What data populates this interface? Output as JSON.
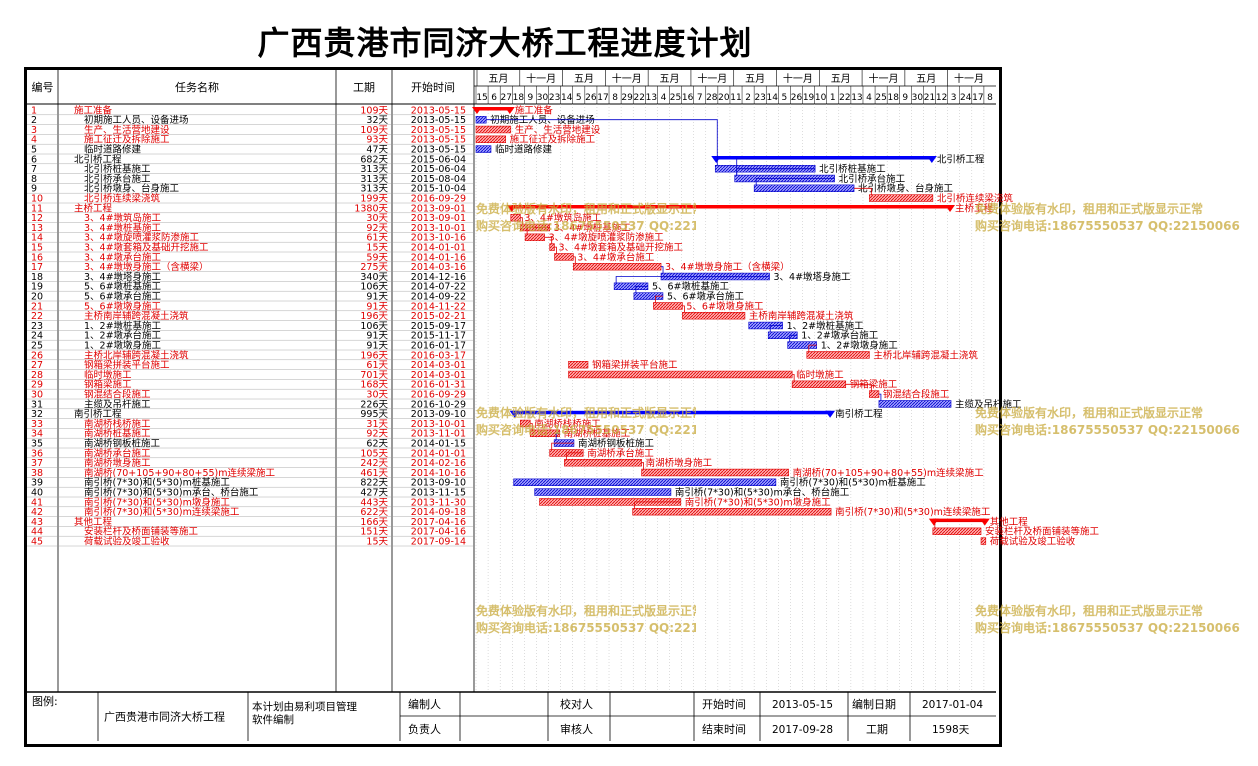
{
  "title": "广西贵港市同济大桥工程进度计划",
  "headers": {
    "id": "编号",
    "name": "任务名称",
    "duration": "工期",
    "start": "开始时间"
  },
  "timescale": {
    "year_labels": [
      "五月",
      "十一月",
      "五月",
      "十一月",
      "五月",
      "十一月",
      "五月",
      "十一月",
      "五月",
      "十一月",
      "五月",
      "十一月"
    ],
    "day_labels": [
      "15",
      "6",
      "27",
      "18",
      "9",
      "30",
      "23",
      "14",
      "5",
      "26",
      "17",
      "8",
      "29",
      "22",
      "13",
      "4",
      "25",
      "16",
      "7",
      "28",
      "20",
      "11",
      "2",
      "23",
      "14",
      "5",
      "26",
      "19",
      "10",
      "1",
      "22",
      "13",
      "4",
      "25",
      "18",
      "9",
      "30",
      "21",
      "12",
      "3",
      "24",
      "17",
      "8"
    ]
  },
  "colors": {
    "critical": "#e00000",
    "normal": "#0000cc",
    "summary_normal": "#0000ff",
    "summary_critical": "#ff0000",
    "text": "#000000"
  },
  "tasks": [
    {
      "id": "1",
      "name": "施工准备",
      "dur": "109天",
      "start": "2013-05-15",
      "crit": true,
      "summary": true
    },
    {
      "id": "2",
      "name": "初期施工人员、设备进场",
      "dur": "32天",
      "start": "2013-05-15",
      "crit": false,
      "summary": false
    },
    {
      "id": "3",
      "name": "生产、生活营地建设",
      "dur": "109天",
      "start": "2013-05-15",
      "crit": true,
      "summary": false
    },
    {
      "id": "4",
      "name": "施工征迁及拆除施工",
      "dur": "93天",
      "start": "2013-05-15",
      "crit": true,
      "summary": false
    },
    {
      "id": "5",
      "name": "临时道路修建",
      "dur": "47天",
      "start": "2013-05-15",
      "crit": false,
      "summary": false
    },
    {
      "id": "6",
      "name": "北引桥工程",
      "dur": "682天",
      "start": "2015-06-04",
      "crit": false,
      "summary": true
    },
    {
      "id": "7",
      "name": "北引桥桩基施工",
      "dur": "313天",
      "start": "2015-06-04",
      "crit": false,
      "summary": false
    },
    {
      "id": "8",
      "name": "北引桥承台施工",
      "dur": "313天",
      "start": "2015-08-04",
      "crit": false,
      "summary": false
    },
    {
      "id": "9",
      "name": "北引桥墩身、台身施工",
      "dur": "313天",
      "start": "2015-10-04",
      "crit": false,
      "summary": false
    },
    {
      "id": "10",
      "name": "北引桥连续梁浇筑",
      "dur": "199天",
      "start": "2016-09-29",
      "crit": true,
      "summary": false
    },
    {
      "id": "11",
      "name": "主桥工程",
      "dur": "1380天",
      "start": "2013-09-01",
      "crit": true,
      "summary": true
    },
    {
      "id": "12",
      "name": "3、4#墩筑岛施工",
      "dur": "30天",
      "start": "2013-09-01",
      "crit": true,
      "summary": false
    },
    {
      "id": "13",
      "name": "3、4#墩桩基施工",
      "dur": "92天",
      "start": "2013-10-01",
      "crit": true,
      "summary": false
    },
    {
      "id": "14",
      "name": "3、4#墩旋喷灌浆防渗施工",
      "dur": "61天",
      "start": "2013-10-16",
      "crit": true,
      "summary": false
    },
    {
      "id": "15",
      "name": "3、4#墩套箱及基础开挖施工",
      "dur": "15天",
      "start": "2014-01-01",
      "crit": true,
      "summary": false
    },
    {
      "id": "16",
      "name": "3、4#墩承台施工",
      "dur": "59天",
      "start": "2014-01-16",
      "crit": true,
      "summary": false
    },
    {
      "id": "17",
      "name": "3、4#墩墩身施工（含横梁）",
      "dur": "275天",
      "start": "2014-03-16",
      "crit": true,
      "summary": false
    },
    {
      "id": "18",
      "name": "3、4#墩塔身施工",
      "dur": "340天",
      "start": "2014-12-16",
      "crit": false,
      "summary": false
    },
    {
      "id": "19",
      "name": "5、6#墩桩基施工",
      "dur": "106天",
      "start": "2014-07-22",
      "crit": false,
      "summary": false
    },
    {
      "id": "20",
      "name": "5、6#墩承台施工",
      "dur": "91天",
      "start": "2014-09-22",
      "crit": false,
      "summary": false
    },
    {
      "id": "21",
      "name": "5、6#墩墩身施工",
      "dur": "91天",
      "start": "2014-11-22",
      "crit": true,
      "summary": false
    },
    {
      "id": "22",
      "name": "主桥南岸辅跨混凝土浇筑",
      "dur": "196天",
      "start": "2015-02-21",
      "crit": true,
      "summary": false
    },
    {
      "id": "23",
      "name": "1、2#墩桩基施工",
      "dur": "106天",
      "start": "2015-09-17",
      "crit": false,
      "summary": false
    },
    {
      "id": "24",
      "name": "1、2#墩承台施工",
      "dur": "91天",
      "start": "2015-11-17",
      "crit": false,
      "summary": false
    },
    {
      "id": "25",
      "name": "1、2#墩墩身施工",
      "dur": "91天",
      "start": "2016-01-17",
      "crit": false,
      "summary": false
    },
    {
      "id": "26",
      "name": "主桥北岸辅跨混凝土浇筑",
      "dur": "196天",
      "start": "2016-03-17",
      "crit": true,
      "summary": false
    },
    {
      "id": "27",
      "name": "钢箱梁拼装平台施工",
      "dur": "61天",
      "start": "2014-03-01",
      "crit": true,
      "summary": false
    },
    {
      "id": "28",
      "name": "临时墩施工",
      "dur": "701天",
      "start": "2014-03-01",
      "crit": true,
      "summary": false
    },
    {
      "id": "29",
      "name": "钢箱梁施工",
      "dur": "168天",
      "start": "2016-01-31",
      "crit": true,
      "summary": false
    },
    {
      "id": "30",
      "name": "钢混结合段施工",
      "dur": "30天",
      "start": "2016-09-29",
      "crit": true,
      "summary": false
    },
    {
      "id": "31",
      "name": "主缆及吊杆施工",
      "dur": "226天",
      "start": "2016-10-29",
      "crit": false,
      "summary": false
    },
    {
      "id": "32",
      "name": "南引桥工程",
      "dur": "995天",
      "start": "2013-09-10",
      "crit": false,
      "summary": true
    },
    {
      "id": "33",
      "name": "南湖桥栈桥施工",
      "dur": "31天",
      "start": "2013-10-01",
      "crit": true,
      "summary": false
    },
    {
      "id": "34",
      "name": "南湖桥桩基施工",
      "dur": "92天",
      "start": "2013-11-01",
      "crit": true,
      "summary": false
    },
    {
      "id": "35",
      "name": "南湖桥钢板桩施工",
      "dur": "62天",
      "start": "2014-01-15",
      "crit": false,
      "summary": false
    },
    {
      "id": "36",
      "name": "南湖桥承台施工",
      "dur": "105天",
      "start": "2014-01-01",
      "crit": true,
      "summary": false
    },
    {
      "id": "37",
      "name": "南湖桥墩身施工",
      "dur": "242天",
      "start": "2014-02-16",
      "crit": true,
      "summary": false
    },
    {
      "id": "38",
      "name": "南湖桥(70+105+90+80+55)m连续梁施工",
      "dur": "461天",
      "start": "2014-10-16",
      "crit": true,
      "summary": false
    },
    {
      "id": "39",
      "name": "南引桥(7*30)和(5*30)m桩基施工",
      "dur": "822天",
      "start": "2013-09-10",
      "crit": false,
      "summary": false
    },
    {
      "id": "40",
      "name": "南引桥(7*30)和(5*30)m承台、桥台施工",
      "dur": "427天",
      "start": "2013-11-15",
      "crit": false,
      "summary": false
    },
    {
      "id": "41",
      "name": "南引桥(7*30)和(5*30)m墩身施工",
      "dur": "443天",
      "start": "2013-11-30",
      "crit": true,
      "summary": false
    },
    {
      "id": "42",
      "name": "南引桥(7*30)和(5*30)m连续梁施工",
      "dur": "622天",
      "start": "2014-09-18",
      "crit": true,
      "summary": false
    },
    {
      "id": "43",
      "name": "其他工程",
      "dur": "166天",
      "start": "2017-04-16",
      "crit": true,
      "summary": true
    },
    {
      "id": "44",
      "name": "安装栏杆及桥面铺装等施工",
      "dur": "151天",
      "start": "2017-04-16",
      "crit": true,
      "summary": false
    },
    {
      "id": "45",
      "name": "荷载试验及竣工验收",
      "dur": "15天",
      "start": "2017-09-14",
      "crit": true,
      "summary": false
    }
  ],
  "footer": {
    "legend_label": "图例:",
    "project_name": "广西贵港市同济大桥工程",
    "note": "本计划由易利项目管理软件编制",
    "editor_label": "编制人",
    "checker_label": "校对人",
    "owner_label": "负责人",
    "reviewer_label": "审核人",
    "start_label": "开始时间",
    "start_value": "2013-05-15",
    "end_label": "结束时间",
    "end_value": "2017-09-28",
    "date_label": "编制日期",
    "date_value": "2017-01-04",
    "duration_label": "工期",
    "duration_value": "1598天"
  },
  "watermark": {
    "line1": "免费体验版有水印，租用和正式版显示正常",
    "line2": "购买咨询电话:18675550537 QQ:22150066"
  }
}
